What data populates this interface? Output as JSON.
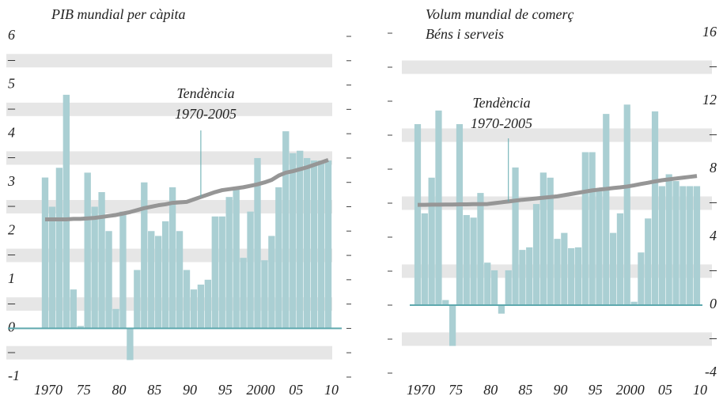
{
  "chart_data": [
    {
      "type": "bar",
      "title": "PIB mundial per càpita",
      "annotation": [
        "Tendència",
        "1970-2005"
      ],
      "categories": [
        "1970",
        null,
        null,
        null,
        null,
        "75",
        null,
        null,
        null,
        null,
        "80",
        null,
        null,
        null,
        null,
        "85",
        null,
        null,
        null,
        null,
        "90",
        null,
        null,
        null,
        null,
        "95",
        null,
        null,
        null,
        null,
        "2000",
        null,
        null,
        null,
        null,
        "05",
        null,
        null,
        null,
        null,
        "10"
      ],
      "series": [
        {
          "color": "#aacfd3",
          "values": [
            3.1,
            2.5,
            3.3,
            4.8,
            0.8,
            0.05,
            3.2,
            2.5,
            2.8,
            2.0,
            0.4,
            2.4,
            -0.65,
            1.2,
            3.0,
            2.0,
            1.9,
            2.2,
            2.9,
            2.0,
            1.2,
            0.8,
            0.9,
            1.0,
            2.3,
            2.3,
            2.7,
            2.9,
            1.45,
            2.4,
            3.5,
            1.4,
            1.9,
            2.9,
            4.05,
            3.6,
            3.65,
            3.5,
            3.45,
            3.45,
            3.45
          ]
        },
        {
          "type": "line",
          "color": "#969696",
          "values": [
            2.24,
            2.24,
            2.24,
            2.24,
            2.25,
            2.25,
            2.26,
            2.27,
            2.29,
            2.31,
            2.33,
            2.36,
            2.39,
            2.43,
            2.47,
            2.5,
            2.53,
            2.55,
            2.58,
            2.59,
            2.6,
            2.65,
            2.7,
            2.75,
            2.8,
            2.84,
            2.86,
            2.88,
            2.9,
            2.93,
            2.96,
            3.0,
            3.05,
            3.14,
            3.2,
            3.23,
            3.27,
            3.31,
            3.36,
            3.41,
            3.46
          ]
        }
      ],
      "ylim": [
        -1,
        6
      ],
      "yticks": [
        6,
        {
          "value": 5.5,
          "label": "–"
        },
        5,
        {
          "value": 4.5,
          "label": "–"
        },
        4,
        {
          "value": 3.5,
          "label": "–"
        },
        3,
        {
          "value": 2.5,
          "label": "–"
        },
        2,
        {
          "value": 1.5,
          "label": "–"
        },
        1,
        {
          "value": 0.5,
          "label": "–"
        },
        0,
        {
          "value": -0.5,
          "label": "–"
        },
        -1
      ]
    },
    {
      "type": "bar",
      "title": "Volum mundial de comerç",
      "subtitle": "Béns i serveis",
      "annotation": [
        "Tendència",
        "1970-2005"
      ],
      "categories": [
        "1970",
        null,
        null,
        null,
        null,
        "75",
        null,
        null,
        null,
        null,
        "80",
        null,
        null,
        null,
        null,
        "85",
        null,
        null,
        null,
        null,
        "90",
        null,
        null,
        null,
        null,
        "95",
        null,
        null,
        null,
        null,
        "2000",
        null,
        null,
        null,
        null,
        "05",
        null,
        null,
        null,
        null,
        "10"
      ],
      "series": [
        {
          "color": "#aacfd3",
          "values": [
            10.65,
            5.4,
            7.5,
            11.45,
            0.3,
            -2.4,
            10.65,
            5.3,
            5.15,
            6.6,
            2.5,
            2.05,
            -0.5,
            2.05,
            8.1,
            3.25,
            3.4,
            5.95,
            7.8,
            7.5,
            3.9,
            4.25,
            3.35,
            3.4,
            9.0,
            9.0,
            6.7,
            11.25,
            4.25,
            5.4,
            11.8,
            0.2,
            3.1,
            5.1,
            11.4,
            7.0,
            7.7,
            7.3,
            7.0,
            7.0,
            7.0
          ]
        },
        {
          "type": "line",
          "color": "#969696",
          "values": [
            5.9,
            5.9,
            5.91,
            5.91,
            5.92,
            5.92,
            5.93,
            5.93,
            5.94,
            5.94,
            5.95,
            6.0,
            6.05,
            6.1,
            6.15,
            6.2,
            6.24,
            6.28,
            6.32,
            6.36,
            6.4,
            6.47,
            6.54,
            6.61,
            6.68,
            6.75,
            6.8,
            6.84,
            6.89,
            6.93,
            6.98,
            7.05,
            7.13,
            7.2,
            7.28,
            7.35,
            7.4,
            7.45,
            7.5,
            7.55,
            7.6
          ]
        }
      ],
      "ylim": [
        -4,
        16
      ],
      "yticks": [
        16,
        {
          "value": 14,
          "label": "–"
        },
        12,
        {
          "value": 10,
          "label": "–"
        },
        8,
        {
          "value": 6,
          "label": "–"
        },
        4,
        {
          "value": 2,
          "label": "–"
        },
        0,
        {
          "value": -2,
          "label": "–"
        },
        -4
      ]
    }
  ]
}
